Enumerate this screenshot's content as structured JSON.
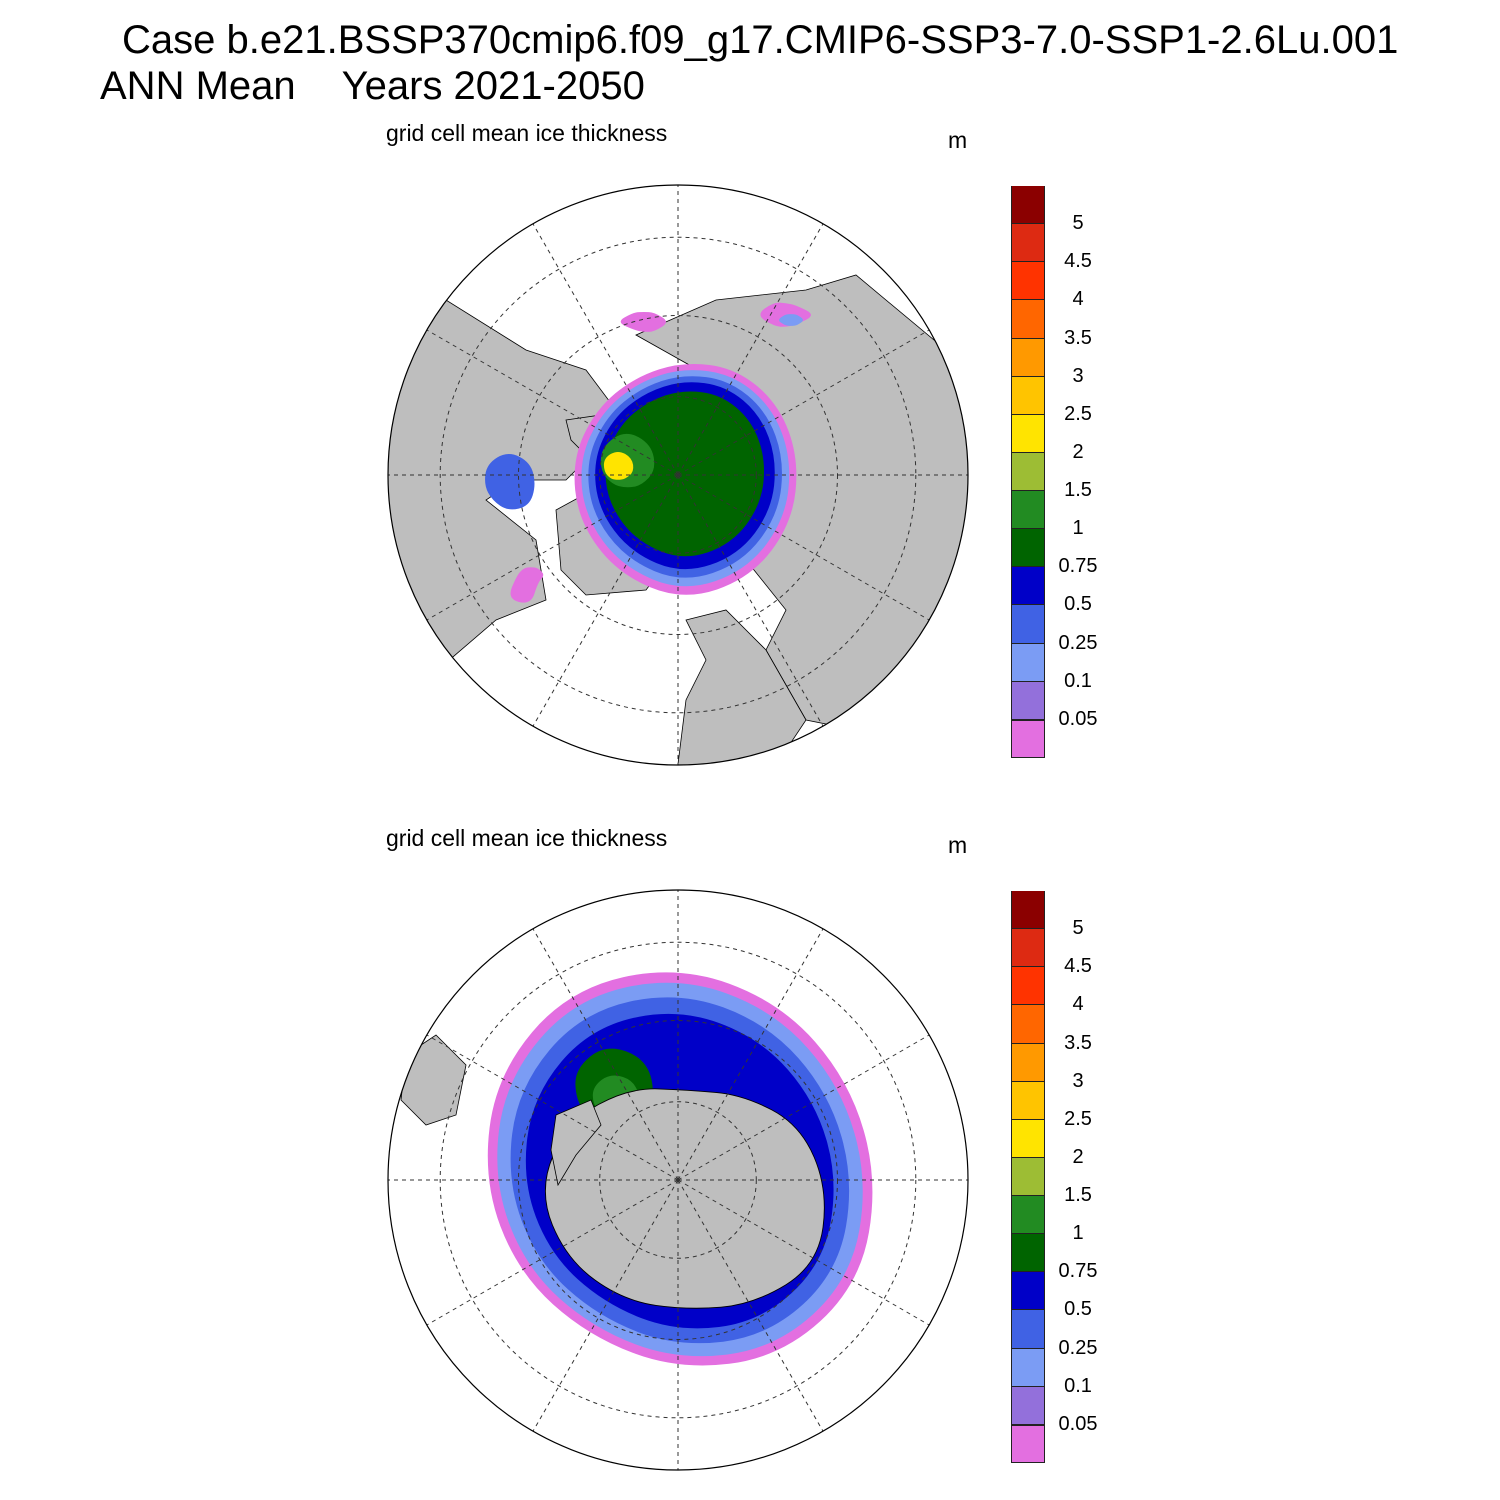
{
  "title": {
    "case": "Case b.e21.BSSP370cmip6.f09_g17.CMIP6-SSP3-7.0-SSP1-2.6Lu.001",
    "season": "ANN Mean",
    "years": "Years 2021-2050"
  },
  "panels": [
    {
      "title": "grid cell mean ice thickness",
      "units": "m",
      "hemisphere": "north"
    },
    {
      "title": "grid cell mean ice thickness",
      "units": "m",
      "hemisphere": "south"
    }
  ],
  "colorbar": {
    "levels": [
      "0.05",
      "0.1",
      "0.25",
      "0.5",
      "0.75",
      "1",
      "1.5",
      "2",
      "2.5",
      "3",
      "3.5",
      "4",
      "4.5",
      "5"
    ],
    "colors": [
      "#e36fe0",
      "#9370db",
      "#7b9cf4",
      "#4062e4",
      "#0000c8",
      "#006400",
      "#228b22",
      "#9dbd34",
      "#ffe400",
      "#ffc400",
      "#ff9900",
      "#ff6600",
      "#ff3300",
      "#dd2a12",
      "#8b0000"
    ]
  },
  "map_colors": {
    "land": "#bebebe",
    "ocean": "#ffffff",
    "coast": "#000000",
    "grid": "#333333"
  }
}
